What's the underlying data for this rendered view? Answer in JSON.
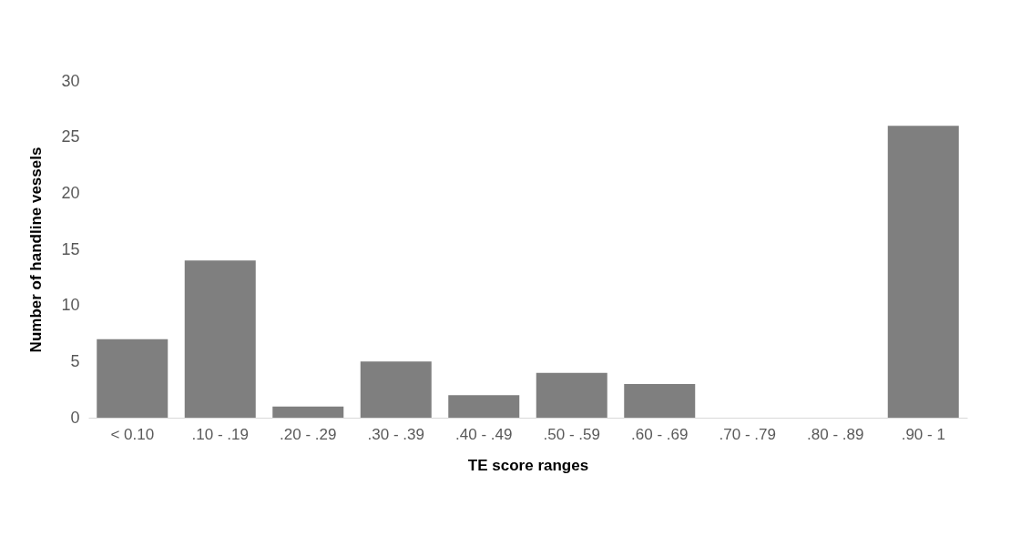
{
  "chart_data": {
    "type": "bar",
    "xlabel": "TE score ranges",
    "ylabel": "Number of handline vessels",
    "categories": [
      "< 0.10",
      ".10 - .19",
      ".20 - .29",
      ".30 - .39",
      ".40 - .49",
      ".50 - .59",
      ".60 - .69",
      ".70 - .79",
      ".80 - .89",
      ".90 - 1"
    ],
    "values": [
      7,
      14,
      1,
      5,
      2,
      4,
      3,
      0,
      0,
      26
    ],
    "color": "#7f7f7f",
    "ylim": [
      0,
      30
    ],
    "yticks": [
      0,
      5,
      10,
      15,
      20,
      25,
      30
    ],
    "grid": false
  }
}
